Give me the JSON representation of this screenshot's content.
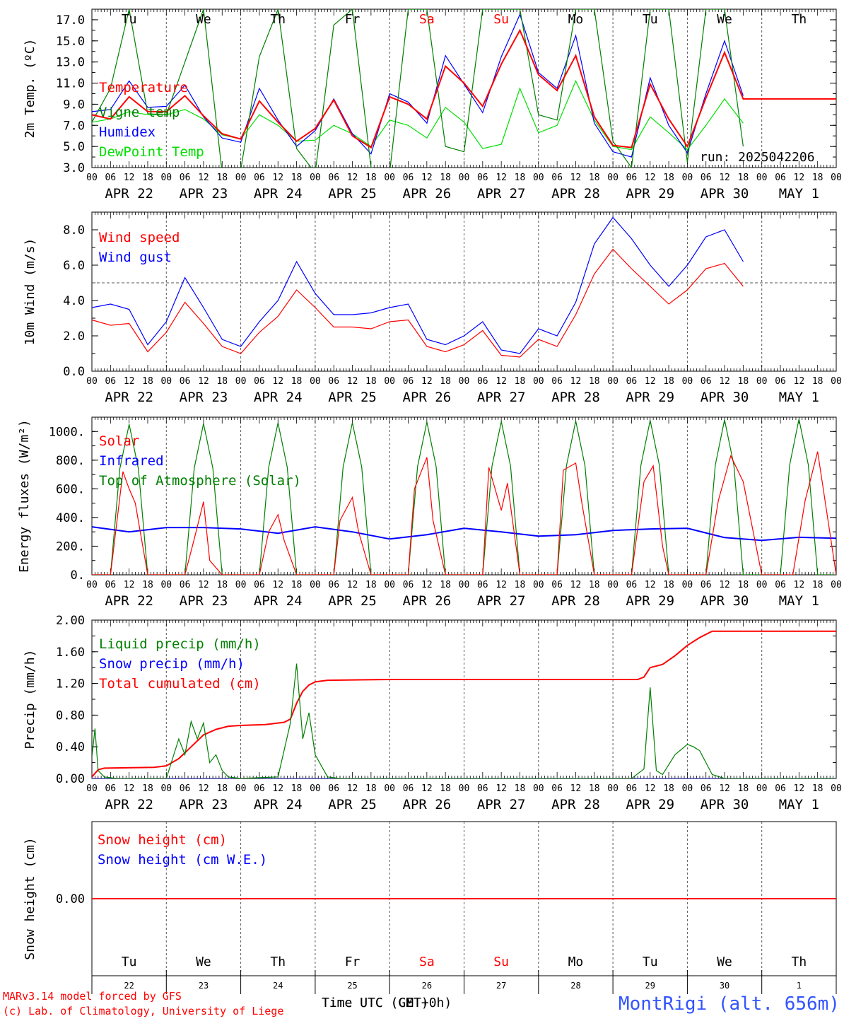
{
  "meteogram": {
    "run_label": "run: 2025042206",
    "credit_line1": "MARv3.14 model forced by GFS",
    "credit_line2": "(c) Lab. of Climatology, University of Liege",
    "station": "MontRigi (alt. 656m)",
    "xaxis_title_a": "Time UTC (GMT+0h)",
    "xaxis_title_b": "Time UTC (CET)",
    "hour_ticks": [
      "00",
      "06",
      "12",
      "18"
    ],
    "date_labels": [
      "APR 22",
      "APR 23",
      "APR 24",
      "APR 25",
      "APR 26",
      "APR 27",
      "APR 28",
      "APR 29",
      "APR 30",
      "MAY  1"
    ],
    "day_names": [
      "Tu",
      "We",
      "Th",
      "Fr",
      "Sa",
      "Su",
      "Mo",
      "Tu",
      "We",
      "Th"
    ],
    "day_numbers": [
      "22",
      "23",
      "24",
      "25",
      "26",
      "27",
      "28",
      "29",
      "30",
      "1"
    ],
    "colors": {
      "red": "#ff0000",
      "blue": "#0000ff",
      "green": "#008000",
      "lightgreen": "#00e000",
      "weekend": "#ff0000",
      "text": "#000000"
    }
  },
  "chart_data": [
    {
      "id": "temperature",
      "type": "line",
      "ylabel": "2m Temp. (ºC)",
      "ylim": [
        3,
        18
      ],
      "yticks": [
        "3.0",
        "5.0",
        "7.0",
        "9.0",
        "11.0",
        "13.0",
        "15.0",
        "17.0"
      ],
      "x_unit": "hours since APR 22 00 UTC",
      "series": [
        {
          "name": "Temperature",
          "color": "#ff0000",
          "x": [
            0,
            6,
            12,
            18,
            24,
            30,
            36,
            42,
            48,
            54,
            60,
            66,
            72,
            78,
            84,
            90,
            96,
            102,
            108,
            114,
            120,
            126,
            132,
            138,
            144,
            150,
            156,
            162,
            168,
            174,
            180,
            186,
            192,
            198,
            204,
            210,
            216,
            222,
            228,
            234,
            240
          ],
          "y": [
            8.0,
            7.6,
            9.7,
            8.3,
            8.3,
            9.8,
            7.9,
            6.2,
            5.7,
            9.3,
            7.3,
            5.5,
            6.7,
            9.4,
            6.0,
            4.9,
            9.7,
            9.0,
            7.6,
            12.6,
            11.0,
            8.8,
            12.8,
            16.0,
            11.8,
            10.3,
            13.6,
            7.8,
            5.1,
            4.9,
            10.9,
            7.6,
            5.0,
            9.6,
            13.9,
            9.5,
            9.5,
            9.5,
            9.5,
            9.5,
            9.5
          ]
        },
        {
          "name": "Vigne temp",
          "color": "#008000",
          "x": [
            0,
            6,
            12,
            18,
            24,
            30,
            36,
            42,
            48,
            54,
            60,
            66,
            72,
            78,
            84,
            90,
            96,
            102,
            108,
            114,
            120,
            126,
            132,
            138,
            144,
            150,
            156,
            162,
            168,
            174,
            180,
            186,
            192,
            198,
            204,
            210
          ],
          "y": [
            7.3,
            10.5,
            18,
            8.1,
            8.0,
            13.0,
            18,
            2.5,
            2.8,
            13.5,
            18,
            4.8,
            2.5,
            16.5,
            18,
            3.0,
            2.5,
            18,
            18,
            5.0,
            4.5,
            18,
            18,
            18,
            8.0,
            7.5,
            18,
            18,
            5.5,
            3.0,
            18,
            18,
            3.5,
            18,
            18,
            5.0
          ]
        },
        {
          "name": "Humidex",
          "color": "#0000ff",
          "x": [
            0,
            6,
            12,
            18,
            24,
            30,
            36,
            42,
            48,
            54,
            60,
            66,
            72,
            78,
            84,
            90,
            96,
            102,
            108,
            114,
            120,
            126,
            132,
            138,
            144,
            150,
            156,
            162,
            168,
            174,
            180,
            186,
            192,
            198,
            204,
            210
          ],
          "y": [
            8.3,
            8.5,
            11.2,
            8.7,
            8.8,
            10.8,
            7.8,
            5.8,
            5.4,
            10.5,
            7.5,
            5.0,
            6.5,
            9.5,
            6.2,
            4.3,
            10.0,
            9.2,
            7.2,
            13.6,
            10.9,
            8.2,
            13.5,
            17.5,
            12.0,
            10.5,
            15.5,
            7.2,
            4.5,
            4.0,
            11.5,
            7.0,
            4.4,
            10.0,
            15.0,
            9.8
          ]
        },
        {
          "name": "DewPoint Temp",
          "color": "#00e000",
          "x": [
            0,
            6,
            12,
            18,
            24,
            30,
            36,
            42,
            48,
            54,
            60,
            66,
            72,
            78,
            84,
            90,
            96,
            102,
            108,
            114,
            120,
            126,
            132,
            138,
            144,
            150,
            156,
            162,
            168,
            174,
            180,
            186,
            192,
            198,
            204,
            210
          ],
          "y": [
            7.3,
            7.6,
            8.3,
            8.0,
            8.0,
            8.5,
            7.6,
            6.1,
            5.7,
            8.0,
            7.0,
            5.5,
            5.6,
            7.0,
            6.2,
            5.0,
            7.5,
            7.0,
            5.8,
            8.7,
            7.3,
            4.8,
            5.2,
            10.5,
            6.3,
            7.0,
            11.2,
            7.5,
            5.0,
            4.7,
            7.8,
            6.3,
            4.7,
            7.0,
            9.5,
            7.2
          ]
        }
      ]
    },
    {
      "id": "wind",
      "type": "line",
      "ylabel": "10m Wind (m/s)",
      "ylim": [
        0,
        9
      ],
      "yticks": [
        "0.0",
        "2.0",
        "4.0",
        "6.0",
        "8.0"
      ],
      "reference_line": 5,
      "series": [
        {
          "name": "Wind speed",
          "color": "#ff0000",
          "x": [
            0,
            6,
            12,
            18,
            24,
            30,
            36,
            42,
            48,
            54,
            60,
            66,
            72,
            78,
            84,
            90,
            96,
            102,
            108,
            114,
            120,
            126,
            132,
            138,
            144,
            150,
            156,
            162,
            168,
            174,
            180,
            186,
            192,
            198,
            204,
            210
          ],
          "y": [
            2.9,
            2.6,
            2.7,
            1.1,
            2.2,
            3.9,
            2.7,
            1.4,
            1.0,
            2.2,
            3.1,
            4.6,
            3.6,
            2.5,
            2.5,
            2.4,
            2.8,
            2.9,
            1.4,
            1.1,
            1.5,
            2.3,
            0.9,
            0.8,
            1.8,
            1.4,
            3.2,
            5.5,
            6.9,
            5.8,
            4.8,
            3.8,
            4.6,
            5.8,
            6.1,
            4.8
          ]
        },
        {
          "name": "Wind gust",
          "color": "#0000ff",
          "x": [
            0,
            6,
            12,
            18,
            24,
            30,
            36,
            42,
            48,
            54,
            60,
            66,
            72,
            78,
            84,
            90,
            96,
            102,
            108,
            114,
            120,
            126,
            132,
            138,
            144,
            150,
            156,
            162,
            168,
            174,
            180,
            186,
            192,
            198,
            204,
            210
          ],
          "y": [
            3.6,
            3.8,
            3.5,
            1.5,
            2.8,
            5.3,
            3.6,
            1.8,
            1.4,
            2.8,
            4.0,
            6.2,
            4.4,
            3.2,
            3.2,
            3.3,
            3.6,
            3.8,
            1.8,
            1.5,
            2.0,
            2.8,
            1.2,
            1.0,
            2.4,
            2.0,
            3.9,
            7.2,
            8.7,
            7.5,
            6.0,
            4.8,
            6.0,
            7.6,
            8.0,
            6.2
          ]
        }
      ]
    },
    {
      "id": "energy",
      "type": "line",
      "ylabel": "Energy fluxes (W/m²)",
      "ylim": [
        0,
        1100
      ],
      "yticks": [
        "0.",
        "200.",
        "400.",
        "600.",
        "800.",
        "1000."
      ],
      "series": [
        {
          "name": "Solar",
          "color": "#ff0000",
          "x": [
            0,
            6,
            10,
            12,
            14,
            18,
            24,
            30,
            33,
            36,
            38,
            42,
            48,
            54,
            57,
            60,
            62,
            66,
            72,
            78,
            80,
            84,
            86,
            90,
            96,
            102,
            104,
            108,
            110,
            114,
            120,
            126,
            128,
            132,
            134,
            138,
            144,
            150,
            152,
            156,
            158,
            162,
            168,
            174,
            178,
            181,
            184,
            186,
            192,
            198,
            202,
            206,
            210,
            216,
            222,
            226,
            230,
            234,
            240
          ],
          "y": [
            0,
            0,
            720,
            600,
            500,
            0,
            0,
            0,
            250,
            510,
            100,
            0,
            0,
            0,
            300,
            420,
            240,
            0,
            0,
            0,
            380,
            540,
            300,
            0,
            0,
            0,
            600,
            820,
            380,
            0,
            0,
            0,
            750,
            450,
            640,
            0,
            0,
            0,
            730,
            780,
            500,
            0,
            0,
            0,
            650,
            760,
            200,
            0,
            0,
            0,
            520,
            830,
            650,
            0,
            0,
            0,
            520,
            860,
            0
          ]
        },
        {
          "name": "Infrared",
          "color": "#0000ff",
          "x": [
            0,
            12,
            24,
            36,
            48,
            60,
            72,
            84,
            96,
            108,
            120,
            132,
            144,
            156,
            168,
            180,
            192,
            204,
            216,
            228,
            240
          ],
          "y": [
            335,
            300,
            330,
            330,
            320,
            290,
            335,
            300,
            250,
            280,
            325,
            300,
            270,
            280,
            310,
            320,
            325,
            260,
            240,
            262,
            255
          ]
        },
        {
          "name": "Top of Atmosphere (Solar)",
          "color": "#008000",
          "x": [
            0,
            6,
            9,
            12,
            15,
            18,
            24,
            30,
            33,
            36,
            39,
            42,
            48,
            54,
            57,
            60,
            63,
            66,
            72,
            78,
            81,
            84,
            87,
            90,
            96,
            102,
            105,
            108,
            111,
            114,
            120,
            126,
            129,
            132,
            135,
            138,
            144,
            150,
            153,
            156,
            159,
            162,
            168,
            174,
            177,
            180,
            183,
            186,
            192,
            198,
            201,
            204,
            207,
            210,
            216,
            222,
            225,
            228,
            231,
            234,
            240
          ],
          "y": [
            0,
            0,
            740,
            1050,
            740,
            0,
            0,
            0,
            745,
            1055,
            745,
            0,
            0,
            0,
            750,
            1060,
            750,
            0,
            0,
            0,
            752,
            1062,
            752,
            0,
            0,
            0,
            755,
            1066,
            755,
            0,
            0,
            0,
            758,
            1070,
            758,
            0,
            0,
            0,
            760,
            1074,
            760,
            0,
            0,
            0,
            762,
            1078,
            762,
            0,
            0,
            0,
            765,
            1082,
            765,
            0,
            0,
            0,
            768,
            1086,
            768,
            0,
            0
          ]
        }
      ]
    },
    {
      "id": "precip",
      "type": "line",
      "ylabel": "Precip (mm/h)",
      "ylim": [
        0,
        2
      ],
      "yticks": [
        "0.00",
        "0.40",
        "0.80",
        "1.20",
        "1.60",
        "2.00"
      ],
      "series": [
        {
          "name": "Liquid precip (mm/h)",
          "color": "#008000",
          "x": [
            0,
            1,
            2,
            4,
            8,
            24,
            28,
            30,
            32,
            34,
            36,
            38,
            40,
            42,
            44,
            48,
            60,
            64,
            66,
            68,
            70,
            72,
            76,
            80,
            96,
            174,
            178,
            180,
            182,
            184,
            188,
            192,
            194,
            196,
            198,
            200,
            204,
            240
          ],
          "y": [
            0.27,
            0.63,
            0.1,
            0.02,
            0.0,
            0.0,
            0.5,
            0.3,
            0.72,
            0.5,
            0.7,
            0.2,
            0.3,
            0.1,
            0.02,
            0.0,
            0.02,
            0.7,
            1.45,
            0.5,
            0.83,
            0.3,
            0.02,
            0.0,
            0.0,
            0.0,
            0.12,
            1.15,
            0.1,
            0.05,
            0.3,
            0.43,
            0.4,
            0.35,
            0.2,
            0.05,
            0.0,
            0.0
          ]
        },
        {
          "name": "Snow precip (mm/h)",
          "color": "#0000ff",
          "x": [
            0,
            240
          ],
          "y": [
            0,
            0
          ]
        },
        {
          "name": "Total cumulated (cm)",
          "color": "#ff0000",
          "x": [
            0,
            2,
            4,
            20,
            24,
            28,
            32,
            36,
            40,
            44,
            48,
            56,
            62,
            64,
            66,
            68,
            70,
            72,
            76,
            96,
            120,
            176,
            178,
            180,
            184,
            188,
            192,
            196,
            200,
            240
          ],
          "y": [
            0.02,
            0.11,
            0.13,
            0.14,
            0.16,
            0.25,
            0.4,
            0.55,
            0.62,
            0.66,
            0.67,
            0.68,
            0.71,
            0.75,
            0.95,
            1.1,
            1.18,
            1.22,
            1.24,
            1.25,
            1.25,
            1.25,
            1.28,
            1.4,
            1.44,
            1.55,
            1.68,
            1.78,
            1.86,
            1.86
          ]
        }
      ]
    },
    {
      "id": "snow",
      "type": "line",
      "ylabel": "Snow height (cm)",
      "yticks": [
        "0.00"
      ],
      "series": [
        {
          "name": "Snow height (cm)",
          "color": "#ff0000",
          "x": [
            0,
            240
          ],
          "y": [
            0,
            0
          ]
        },
        {
          "name": "Snow height (cm W.E.)",
          "color": "#0000ff",
          "x": [
            0,
            240
          ],
          "y": [
            0,
            0
          ]
        }
      ]
    }
  ]
}
